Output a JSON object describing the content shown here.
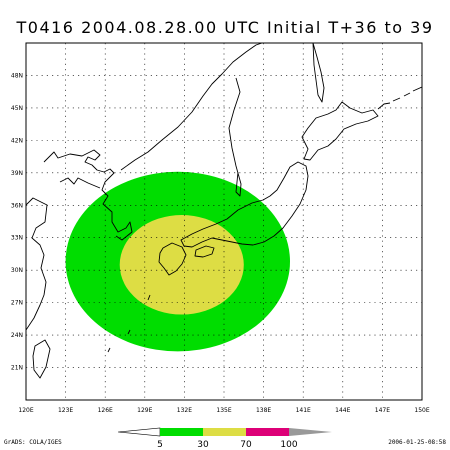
{
  "title": "T0416 2004.08.28.00 UTC Initial T+36 to 39",
  "map": {
    "lon_range": [
      120,
      150
    ],
    "lat_range": [
      18,
      51
    ],
    "lon_ticks": [
      {
        "value": 120,
        "label": "120E"
      },
      {
        "value": 123,
        "label": "123E"
      },
      {
        "value": 126,
        "label": "126E"
      },
      {
        "value": 129,
        "label": "129E"
      },
      {
        "value": 132,
        "label": "132E"
      },
      {
        "value": 135,
        "label": "135E"
      },
      {
        "value": 138,
        "label": "138E"
      },
      {
        "value": 141,
        "label": "141E"
      },
      {
        "value": 144,
        "label": "144E"
      },
      {
        "value": 147,
        "label": "147E"
      },
      {
        "value": 150,
        "label": "150E"
      }
    ],
    "lat_ticks": [
      {
        "value": 21,
        "label": "21N"
      },
      {
        "value": 24,
        "label": "24N"
      },
      {
        "value": 27,
        "label": "27N"
      },
      {
        "value": 30,
        "label": "30N"
      },
      {
        "value": 33,
        "label": "33N"
      },
      {
        "value": 36,
        "label": "36N"
      },
      {
        "value": 39,
        "label": "39N"
      },
      {
        "value": 42,
        "label": "42N"
      },
      {
        "value": 45,
        "label": "45N"
      },
      {
        "value": 48,
        "label": "48N"
      }
    ],
    "grid": true,
    "probability_areas": [
      {
        "min": 5,
        "color": "#00dd00",
        "center_lon": 131.5,
        "center_lat": 30.8,
        "radius_lon": 8.5,
        "radius_lat": 8.3
      },
      {
        "min": 30,
        "color": "#dddd44",
        "center_lon": 131.8,
        "center_lat": 30.5,
        "radius_lon": 4.7,
        "radius_lat": 4.6
      }
    ]
  },
  "colorbar": {
    "segments": [
      {
        "color": "#00dd00"
      },
      {
        "color": "#dddd44"
      },
      {
        "color": "#dd0077"
      },
      {
        "color": "#999999"
      }
    ],
    "labels": [
      "5",
      "30",
      "70",
      "100"
    ]
  },
  "credit": "GrADS: COLA/IGES",
  "timestamp": "2006-01-25-08:58"
}
